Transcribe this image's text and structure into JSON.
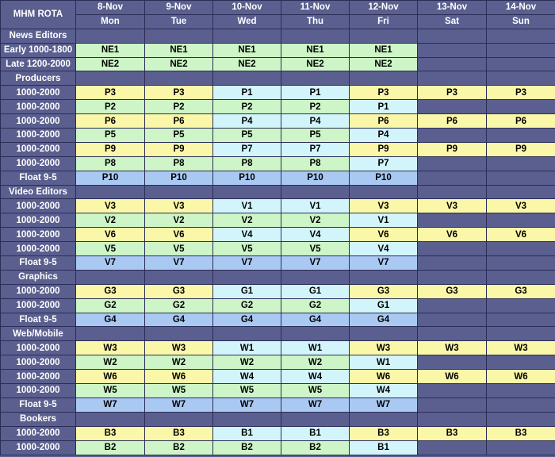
{
  "title": "MHM ROTA",
  "days": [
    {
      "date": "8-Nov",
      "day": "Mon"
    },
    {
      "date": "9-Nov",
      "day": "Tue"
    },
    {
      "date": "10-Nov",
      "day": "Wed"
    },
    {
      "date": "11-Nov",
      "day": "Thu"
    },
    {
      "date": "12-Nov",
      "day": "Fri"
    },
    {
      "date": "13-Nov",
      "day": "Sat"
    },
    {
      "date": "14-Nov",
      "day": "Sun"
    }
  ],
  "colors": {
    "green": "#cdf5c7",
    "yellow": "#fbf7a8",
    "cyan": "#d2f5fb",
    "blue": "#a9c9f3",
    "none": "#5a5f8f"
  },
  "rows": [
    {
      "section": "News Editors"
    },
    {
      "label": "Early 1000-1800",
      "cells": [
        [
          "NE1",
          "green"
        ],
        [
          "NE1",
          "green"
        ],
        [
          "NE1",
          "green"
        ],
        [
          "NE1",
          "green"
        ],
        [
          "NE1",
          "green"
        ],
        [
          "",
          "none"
        ],
        [
          "",
          "none"
        ]
      ]
    },
    {
      "label": "Late 1200-2000",
      "cells": [
        [
          "NE2",
          "green"
        ],
        [
          "NE2",
          "green"
        ],
        [
          "NE2",
          "green"
        ],
        [
          "NE2",
          "green"
        ],
        [
          "NE2",
          "green"
        ],
        [
          "",
          "none"
        ],
        [
          "",
          "none"
        ]
      ]
    },
    {
      "section": "Producers"
    },
    {
      "label": "1000-2000",
      "cells": [
        [
          "P3",
          "yellow"
        ],
        [
          "P3",
          "yellow"
        ],
        [
          "P1",
          "cyan"
        ],
        [
          "P1",
          "cyan"
        ],
        [
          "P3",
          "yellow"
        ],
        [
          "P3",
          "yellow"
        ],
        [
          "P3",
          "yellow"
        ]
      ]
    },
    {
      "label": "1000-2000",
      "cells": [
        [
          "P2",
          "green"
        ],
        [
          "P2",
          "green"
        ],
        [
          "P2",
          "green"
        ],
        [
          "P2",
          "green"
        ],
        [
          "P1",
          "cyan"
        ],
        [
          "",
          "none"
        ],
        [
          "",
          "none"
        ]
      ]
    },
    {
      "label": "1000-2000",
      "cells": [
        [
          "P6",
          "yellow"
        ],
        [
          "P6",
          "yellow"
        ],
        [
          "P4",
          "cyan"
        ],
        [
          "P4",
          "cyan"
        ],
        [
          "P6",
          "yellow"
        ],
        [
          "P6",
          "yellow"
        ],
        [
          "P6",
          "yellow"
        ]
      ]
    },
    {
      "label": "1000-2000",
      "cells": [
        [
          "P5",
          "green"
        ],
        [
          "P5",
          "green"
        ],
        [
          "P5",
          "green"
        ],
        [
          "P5",
          "green"
        ],
        [
          "P4",
          "cyan"
        ],
        [
          "",
          "none"
        ],
        [
          "",
          "none"
        ]
      ]
    },
    {
      "label": "1000-2000",
      "cells": [
        [
          "P9",
          "yellow"
        ],
        [
          "P9",
          "yellow"
        ],
        [
          "P7",
          "cyan"
        ],
        [
          "P7",
          "cyan"
        ],
        [
          "P9",
          "yellow"
        ],
        [
          "P9",
          "yellow"
        ],
        [
          "P9",
          "yellow"
        ]
      ]
    },
    {
      "label": "1000-2000",
      "cells": [
        [
          "P8",
          "green"
        ],
        [
          "P8",
          "green"
        ],
        [
          "P8",
          "green"
        ],
        [
          "P8",
          "green"
        ],
        [
          "P7",
          "cyan"
        ],
        [
          "",
          "none"
        ],
        [
          "",
          "none"
        ]
      ]
    },
    {
      "label": "Float 9-5",
      "cells": [
        [
          "P10",
          "blue"
        ],
        [
          "P10",
          "blue"
        ],
        [
          "P10",
          "blue"
        ],
        [
          "P10",
          "blue"
        ],
        [
          "P10",
          "blue"
        ],
        [
          "",
          "none"
        ],
        [
          "",
          "none"
        ]
      ]
    },
    {
      "section": "Video Editors"
    },
    {
      "label": "1000-2000",
      "cells": [
        [
          "V3",
          "yellow"
        ],
        [
          "V3",
          "yellow"
        ],
        [
          "V1",
          "cyan"
        ],
        [
          "V1",
          "cyan"
        ],
        [
          "V3",
          "yellow"
        ],
        [
          "V3",
          "yellow"
        ],
        [
          "V3",
          "yellow"
        ]
      ]
    },
    {
      "label": "1000-2000",
      "cells": [
        [
          "V2",
          "green"
        ],
        [
          "V2",
          "green"
        ],
        [
          "V2",
          "green"
        ],
        [
          "V2",
          "green"
        ],
        [
          "V1",
          "cyan"
        ],
        [
          "",
          "none"
        ],
        [
          "",
          "none"
        ]
      ]
    },
    {
      "label": "1000-2000",
      "cells": [
        [
          "V6",
          "yellow"
        ],
        [
          "V6",
          "yellow"
        ],
        [
          "V4",
          "cyan"
        ],
        [
          "V4",
          "cyan"
        ],
        [
          "V6",
          "yellow"
        ],
        [
          "V6",
          "yellow"
        ],
        [
          "V6",
          "yellow"
        ]
      ]
    },
    {
      "label": "1000-2000",
      "cells": [
        [
          "V5",
          "green"
        ],
        [
          "V5",
          "green"
        ],
        [
          "V5",
          "green"
        ],
        [
          "V5",
          "green"
        ],
        [
          "V4",
          "cyan"
        ],
        [
          "",
          "none"
        ],
        [
          "",
          "none"
        ]
      ]
    },
    {
      "label": "Float 9-5",
      "cells": [
        [
          "V7",
          "blue"
        ],
        [
          "V7",
          "blue"
        ],
        [
          "V7",
          "blue"
        ],
        [
          "V7",
          "blue"
        ],
        [
          "V7",
          "blue"
        ],
        [
          "",
          "none"
        ],
        [
          "",
          "none"
        ]
      ]
    },
    {
      "section": "Graphics"
    },
    {
      "label": "1000-2000",
      "cells": [
        [
          "G3",
          "yellow"
        ],
        [
          "G3",
          "yellow"
        ],
        [
          "G1",
          "cyan"
        ],
        [
          "G1",
          "cyan"
        ],
        [
          "G3",
          "yellow"
        ],
        [
          "G3",
          "yellow"
        ],
        [
          "G3",
          "yellow"
        ]
      ]
    },
    {
      "label": "1000-2000",
      "cells": [
        [
          "G2",
          "green"
        ],
        [
          "G2",
          "green"
        ],
        [
          "G2",
          "green"
        ],
        [
          "G2",
          "green"
        ],
        [
          "G1",
          "cyan"
        ],
        [
          "",
          "none"
        ],
        [
          "",
          "none"
        ]
      ]
    },
    {
      "label": "Float 9-5",
      "cells": [
        [
          "G4",
          "blue"
        ],
        [
          "G4",
          "blue"
        ],
        [
          "G4",
          "blue"
        ],
        [
          "G4",
          "blue"
        ],
        [
          "G4",
          "blue"
        ],
        [
          "",
          "none"
        ],
        [
          "",
          "none"
        ]
      ]
    },
    {
      "section": "Web/Mobile"
    },
    {
      "label": "1000-2000",
      "cells": [
        [
          "W3",
          "yellow"
        ],
        [
          "W3",
          "yellow"
        ],
        [
          "W1",
          "cyan"
        ],
        [
          "W1",
          "cyan"
        ],
        [
          "W3",
          "yellow"
        ],
        [
          "W3",
          "yellow"
        ],
        [
          "W3",
          "yellow"
        ]
      ]
    },
    {
      "label": "1000-2000",
      "cells": [
        [
          "W2",
          "green"
        ],
        [
          "W2",
          "green"
        ],
        [
          "W2",
          "green"
        ],
        [
          "W2",
          "green"
        ],
        [
          "W1",
          "cyan"
        ],
        [
          "",
          "none"
        ],
        [
          "",
          "none"
        ]
      ]
    },
    {
      "label": "1000-2000",
      "cells": [
        [
          "W6",
          "yellow"
        ],
        [
          "W6",
          "yellow"
        ],
        [
          "W4",
          "cyan"
        ],
        [
          "W4",
          "cyan"
        ],
        [
          "W6",
          "yellow"
        ],
        [
          "W6",
          "yellow"
        ],
        [
          "W6",
          "yellow"
        ]
      ]
    },
    {
      "label": "1000-2000",
      "cells": [
        [
          "W5",
          "green"
        ],
        [
          "W5",
          "green"
        ],
        [
          "W5",
          "green"
        ],
        [
          "W5",
          "green"
        ],
        [
          "W4",
          "cyan"
        ],
        [
          "",
          "none"
        ],
        [
          "",
          "none"
        ]
      ]
    },
    {
      "label": "Float 9-5",
      "cells": [
        [
          "W7",
          "blue"
        ],
        [
          "W7",
          "blue"
        ],
        [
          "W7",
          "blue"
        ],
        [
          "W7",
          "blue"
        ],
        [
          "W7",
          "blue"
        ],
        [
          "",
          "none"
        ],
        [
          "",
          "none"
        ]
      ]
    },
    {
      "section": "Bookers"
    },
    {
      "label": "1000-2000",
      "cells": [
        [
          "B3",
          "yellow"
        ],
        [
          "B3",
          "yellow"
        ],
        [
          "B1",
          "cyan"
        ],
        [
          "B1",
          "cyan"
        ],
        [
          "B3",
          "yellow"
        ],
        [
          "B3",
          "yellow"
        ],
        [
          "B3",
          "yellow"
        ]
      ]
    },
    {
      "label": "1000-2000",
      "cells": [
        [
          "B2",
          "green"
        ],
        [
          "B2",
          "green"
        ],
        [
          "B2",
          "green"
        ],
        [
          "B2",
          "green"
        ],
        [
          "B1",
          "cyan"
        ],
        [
          "",
          "none"
        ],
        [
          "",
          "none"
        ]
      ]
    }
  ]
}
